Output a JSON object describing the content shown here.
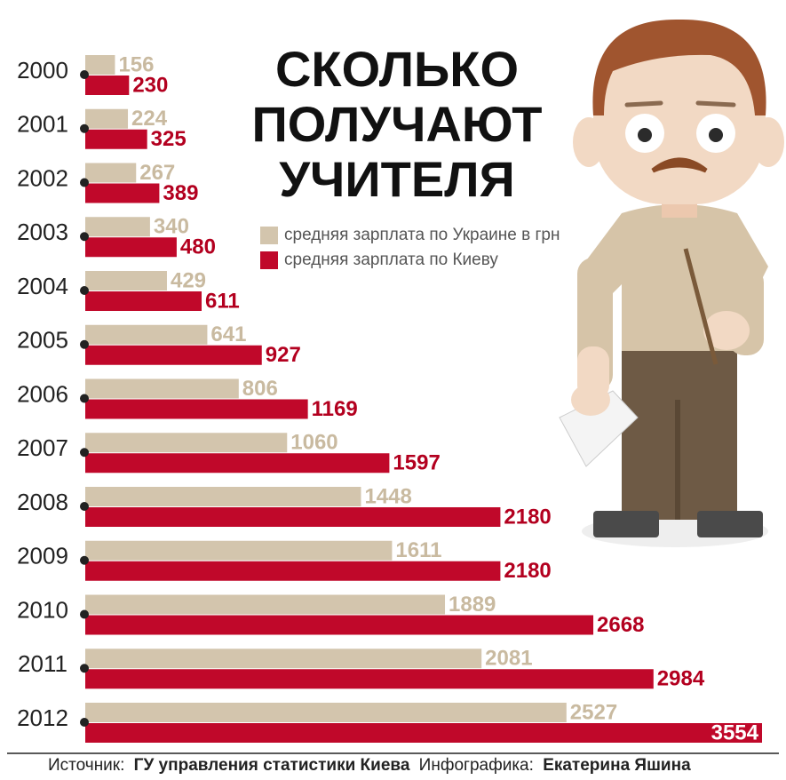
{
  "chart_data": {
    "type": "bar",
    "orientation": "horizontal",
    "title": "СКОЛЬКО ПОЛУЧАЮТ УЧИТЕЛЯ",
    "categories": [
      "2000",
      "2001",
      "2002",
      "2003",
      "2004",
      "2005",
      "2006",
      "2007",
      "2008",
      "2009",
      "2010",
      "2011",
      "2012"
    ],
    "series": [
      {
        "name": "средняя зарплата по Украине в грн",
        "color": "#d3c5ad",
        "label_color": "#c9baa0",
        "values": [
          156,
          224,
          267,
          340,
          429,
          641,
          806,
          1060,
          1448,
          1611,
          1889,
          2081,
          2527
        ]
      },
      {
        "name": "средняя зарплата по Киеву",
        "color": "#c0082a",
        "label_color": "#b3001f",
        "values": [
          230,
          325,
          389,
          480,
          611,
          927,
          1169,
          1597,
          2180,
          2180,
          2668,
          2984,
          3554
        ]
      }
    ],
    "source_label": "Источник:",
    "source": "ГУ управления статистики Киева",
    "credit_label": "Инфографика:",
    "credit": "Екатерина Яшина"
  }
}
